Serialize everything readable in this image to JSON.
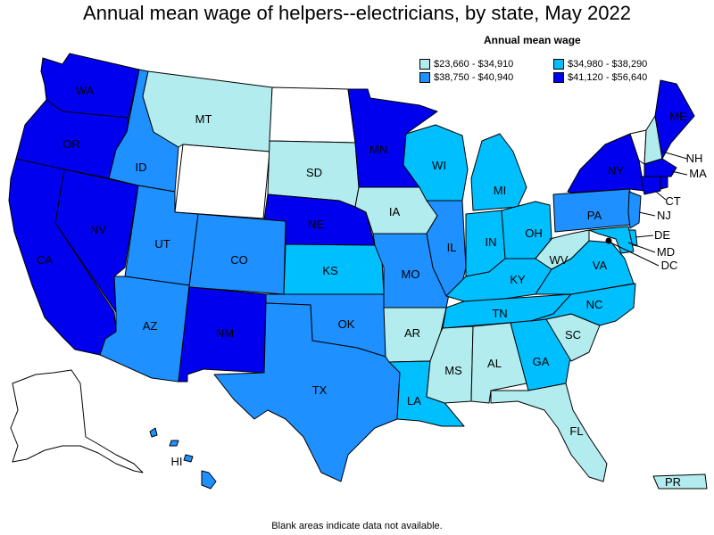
{
  "title": "Annual mean wage of helpers--electricians, by state, May 2022",
  "legend": {
    "title": "Annual mean wage",
    "items": [
      {
        "label": "$23,660 - $34,910",
        "color": "#b2ecee"
      },
      {
        "label": "$34,980 - $38,290",
        "color": "#00bfff"
      },
      {
        "label": "$38,750 - $40,940",
        "color": "#1e90ff"
      },
      {
        "label": "$41,120 - $56,640",
        "color": "#0000ee"
      }
    ]
  },
  "colors": {
    "band1": "#b2ecee",
    "band2": "#00bfff",
    "band3": "#1e90ff",
    "band4": "#0000ee",
    "no_data": "#ffffff"
  },
  "states": {
    "WA": {
      "label": "WA",
      "band": 4
    },
    "OR": {
      "label": "OR",
      "band": 4
    },
    "CA": {
      "label": "CA",
      "band": 4
    },
    "NV": {
      "label": "NV",
      "band": 4
    },
    "ID": {
      "label": "ID",
      "band": 3
    },
    "MT": {
      "label": "MT",
      "band": 1
    },
    "WY": {
      "label": "",
      "band": 0
    },
    "UT": {
      "label": "UT",
      "band": 3
    },
    "AZ": {
      "label": "AZ",
      "band": 3
    },
    "CO": {
      "label": "CO",
      "band": 3
    },
    "NM": {
      "label": "NM",
      "band": 4
    },
    "ND": {
      "label": "",
      "band": 0
    },
    "SD": {
      "label": "SD",
      "band": 1
    },
    "NE": {
      "label": "NE",
      "band": 4
    },
    "KS": {
      "label": "KS",
      "band": 2
    },
    "OK": {
      "label": "OK",
      "band": 3
    },
    "TX": {
      "label": "TX",
      "band": 3
    },
    "MN": {
      "label": "MN",
      "band": 4
    },
    "IA": {
      "label": "IA",
      "band": 1
    },
    "MO": {
      "label": "MO",
      "band": 3
    },
    "AR": {
      "label": "AR",
      "band": 1
    },
    "LA": {
      "label": "LA",
      "band": 2
    },
    "WI": {
      "label": "WI",
      "band": 2
    },
    "IL": {
      "label": "IL",
      "band": 3
    },
    "MI": {
      "label": "MI",
      "band": 2
    },
    "IN": {
      "label": "IN",
      "band": 2
    },
    "OH": {
      "label": "OH",
      "band": 2
    },
    "KY": {
      "label": "KY",
      "band": 2
    },
    "TN": {
      "label": "TN",
      "band": 2
    },
    "MS": {
      "label": "MS",
      "band": 1
    },
    "AL": {
      "label": "AL",
      "band": 1
    },
    "GA": {
      "label": "GA",
      "band": 2
    },
    "FL": {
      "label": "FL",
      "band": 1
    },
    "SC": {
      "label": "SC",
      "band": 1
    },
    "NC": {
      "label": "NC",
      "band": 2
    },
    "VA": {
      "label": "VA",
      "band": 2
    },
    "WV": {
      "label": "WV",
      "band": 1
    },
    "PA": {
      "label": "PA",
      "band": 3
    },
    "NY": {
      "label": "NY",
      "band": 4
    },
    "VT": {
      "label": "",
      "band": 0
    },
    "NH": {
      "label": "NH",
      "band": 1
    },
    "ME": {
      "label": "ME",
      "band": 4
    },
    "MA": {
      "label": "MA",
      "band": 4
    },
    "CT": {
      "label": "CT",
      "band": 4
    },
    "RI": {
      "label": "",
      "band": 4
    },
    "NJ": {
      "label": "NJ",
      "band": 3
    },
    "DE": {
      "label": "DE",
      "band": 2
    },
    "MD": {
      "label": "MD",
      "band": 2
    },
    "DC": {
      "label": "DC",
      "band": 0
    },
    "AK": {
      "label": "",
      "band": 0
    },
    "HI": {
      "label": "HI",
      "band": 3
    },
    "PR": {
      "label": "PR",
      "band": 1
    }
  },
  "footnote": "Blank areas indicate data not available."
}
